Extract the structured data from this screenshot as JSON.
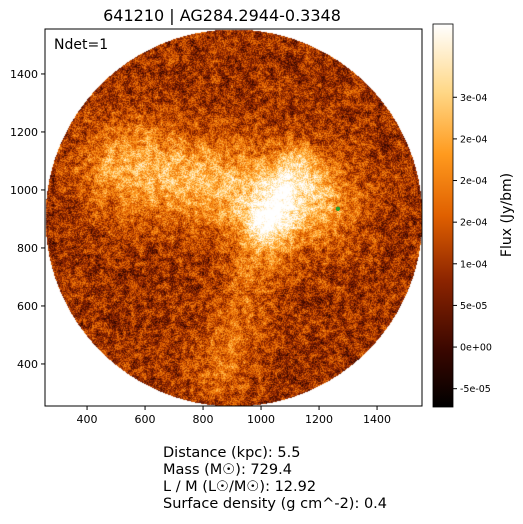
{
  "chart_data": {
    "type": "heatmap",
    "title": "641210 | AG284.2944-0.3348",
    "annotation": "Ndet=1",
    "xlabel": "",
    "ylabel": "",
    "xlim": [
      255,
      1555
    ],
    "ylim": [
      255,
      1555
    ],
    "x_ticks": [
      400,
      600,
      800,
      1000,
      1200,
      1400
    ],
    "y_ticks": [
      400,
      600,
      800,
      1000,
      1200,
      1400
    ],
    "colorbar": {
      "label": "Flux (Jy/bm)",
      "vmin": -7.2e-05,
      "vmax": 0.000388,
      "ticks": [
        {
          "value": -5e-05,
          "label": "-5e-05"
        },
        {
          "value": 0.0,
          "label": "0e+00"
        },
        {
          "value": 5e-05,
          "label": "5e-05"
        },
        {
          "value": 0.0001,
          "label": "1e-04"
        },
        {
          "value": 0.00015,
          "label": "2e-04"
        },
        {
          "value": 0.0002,
          "label": "2e-04"
        },
        {
          "value": 0.00025,
          "label": "2e-04"
        },
        {
          "value": 0.0003,
          "label": "3e-04"
        }
      ],
      "colormap": "afmhot"
    },
    "field": {
      "center": [
        905,
        905
      ],
      "radius": 650
    },
    "source_marker": {
      "x": 1265,
      "y": 935,
      "color": "#2ca02c"
    }
  },
  "info": {
    "distance": "Distance (kpc): 5.5",
    "mass": "Mass (M☉): 729.4",
    "lm": "L / M (L☉/M☉): 12.92",
    "surface_density": "Surface density (g cm^-2): 0.4"
  }
}
